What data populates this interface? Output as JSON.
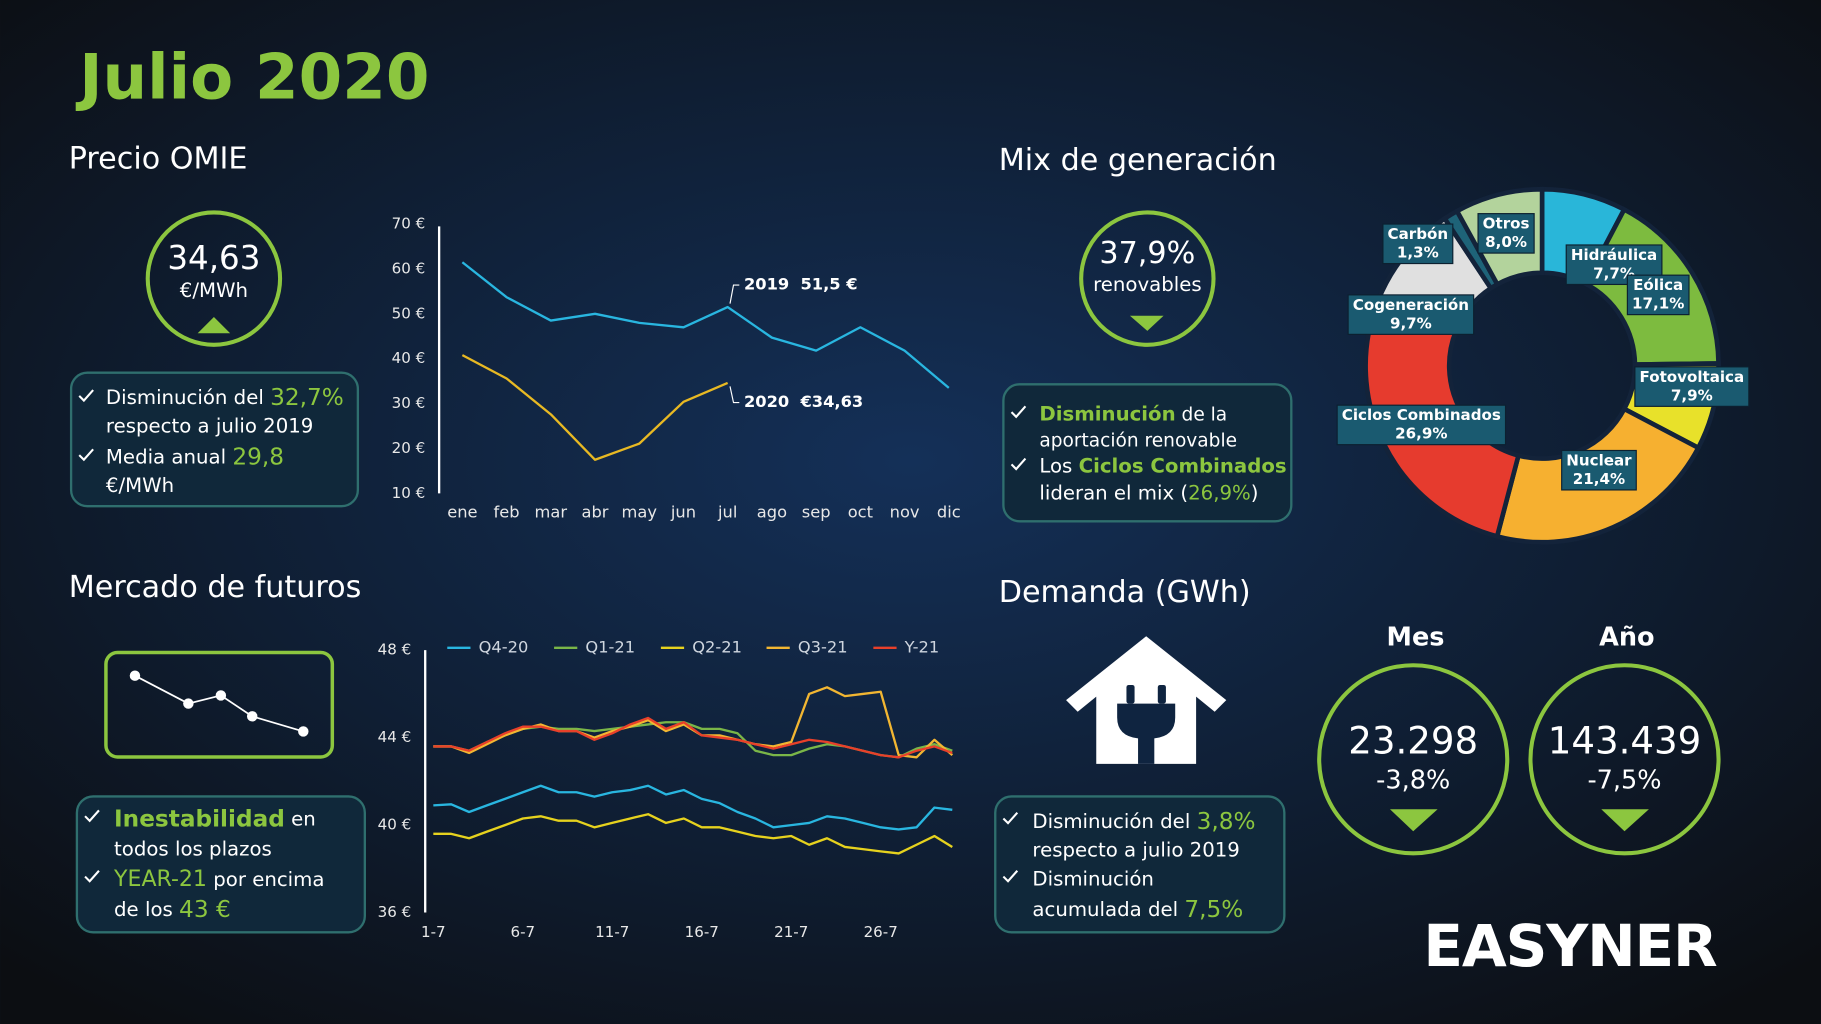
{
  "title": "Julio 2020",
  "omie": {
    "heading": "Precio OMIE",
    "price": "34,63",
    "unit": "€/MWh",
    "bullets": [
      [
        "Disminución del ",
        "32,7%"
      ],
      [
        "respecto a julio 2019"
      ],
      [
        "Media anual ",
        "29,8"
      ],
      [
        "€/MWh"
      ]
    ]
  },
  "mix": {
    "heading": "Mix de generación",
    "share": "37,9%",
    "unit": "renovables",
    "bullets": [
      [
        "Disminución",
        " de la"
      ],
      [
        "aportación renovable"
      ],
      [
        "Los ",
        "Ciclos Combinados"
      ],
      [
        "lideran el mix (",
        "26,9%",
        ")"
      ]
    ]
  },
  "futures": {
    "heading": "Mercado de futuros",
    "bullets": [
      [
        "Inestabilidad",
        " en"
      ],
      [
        "todos los plazos"
      ],
      [
        "YEAR-21",
        " por encima"
      ],
      [
        "de los ",
        "43 €"
      ]
    ]
  },
  "demand": {
    "heading": "Demanda (GWh)",
    "month": {
      "label": "Mes",
      "value": "23.298",
      "change": "-3,8%"
    },
    "year": {
      "label": "Año",
      "value": "143.439",
      "change": "-7,5%"
    },
    "bullets": [
      [
        "Disminución del ",
        "3,8%"
      ],
      [
        "respecto a julio 2019"
      ],
      [
        "Disminución"
      ],
      [
        "acumulada del ",
        "7,5%"
      ]
    ]
  },
  "logo": "EASYNER",
  "chart_data": [
    {
      "type": "line",
      "categories": [
        "ene",
        "feb",
        "mar",
        "abr",
        "may",
        "jun",
        "jul",
        "ago",
        "sep",
        "oct",
        "nov",
        "dic"
      ],
      "series": [
        {
          "name": "2019",
          "color": "#29b6e0",
          "values": [
            61.5,
            53.7,
            48.5,
            50,
            48,
            47,
            51.5,
            44.7,
            41.8,
            47,
            41.8,
            33.5
          ]
        },
        {
          "name": "2020",
          "color": "#e8b923",
          "values": [
            40.8,
            35.6,
            27.6,
            17.5,
            21.1,
            30.4,
            34.63,
            null,
            null,
            null,
            null,
            null
          ]
        }
      ],
      "annotations": [
        "2019  51,5 €",
        "2020  €34,63"
      ],
      "ylim": [
        10,
        70
      ],
      "yticks": [
        {
          "value": 10,
          "label": "10 €"
        },
        {
          "value": 20,
          "label": "20 €"
        },
        {
          "value": 30,
          "label": "30 €"
        },
        {
          "value": 40,
          "label": "40 €"
        },
        {
          "value": 50,
          "label": "50 €"
        },
        {
          "value": 60,
          "label": "60 €"
        },
        {
          "value": 70,
          "label": "70 €"
        }
      ]
    },
    {
      "type": "line",
      "x": [
        1,
        2,
        3,
        4,
        5,
        6,
        7,
        8,
        9,
        10,
        11,
        12,
        13,
        14,
        15,
        16,
        17,
        18,
        19,
        20,
        21,
        22,
        23,
        24,
        25,
        26,
        27,
        28,
        29,
        30
      ],
      "series": [
        {
          "name": "Q4-20",
          "color": "#29b6e0",
          "values": [
            40.9,
            40.95,
            40.6,
            40.9,
            41.2,
            41.5,
            41.8,
            41.5,
            41.5,
            41.3,
            41.5,
            41.6,
            41.8,
            41.4,
            41.6,
            41.2,
            41.0,
            40.6,
            40.3,
            39.9,
            40.0,
            40.1,
            40.4,
            40.3,
            40.1,
            39.9,
            39.8,
            39.9,
            40.8,
            40.7
          ]
        },
        {
          "name": "Q1-21",
          "color": "#7ab648",
          "values": [
            43.6,
            43.6,
            43.4,
            43.8,
            44.1,
            44.4,
            44.5,
            44.4,
            44.4,
            44.3,
            44.4,
            44.5,
            44.6,
            44.7,
            44.7,
            44.4,
            44.4,
            44.2,
            43.4,
            43.2,
            43.2,
            43.5,
            43.7,
            43.6,
            43.4,
            43.2,
            43.1,
            43.5,
            43.7,
            43.4
          ]
        },
        {
          "name": "Q2-21",
          "color": "#e6d21e",
          "values": [
            39.6,
            39.6,
            39.4,
            39.7,
            40.0,
            40.3,
            40.4,
            40.2,
            40.2,
            39.9,
            40.1,
            40.3,
            40.5,
            40.1,
            40.3,
            39.9,
            39.9,
            39.7,
            39.5,
            39.4,
            39.5,
            39.1,
            39.4,
            39.0,
            38.9,
            38.8,
            38.7,
            39.1,
            39.5,
            39.0
          ]
        },
        {
          "name": "Q3-21",
          "color": "#f2b632",
          "values": [
            43.6,
            43.6,
            43.3,
            43.7,
            44.1,
            44.4,
            44.6,
            44.3,
            44.3,
            44.0,
            44.3,
            44.5,
            44.8,
            44.3,
            44.6,
            44.1,
            44.1,
            43.9,
            43.7,
            43.6,
            43.8,
            46.0,
            46.3,
            45.9,
            46.0,
            46.1,
            43.2,
            43.1,
            43.9,
            43.2
          ]
        },
        {
          "name": "Y-21",
          "color": "#e8402a",
          "values": [
            43.6,
            43.6,
            43.4,
            43.8,
            44.2,
            44.5,
            44.5,
            44.3,
            44.3,
            43.9,
            44.2,
            44.6,
            44.9,
            44.4,
            44.7,
            44.1,
            44.0,
            43.9,
            43.7,
            43.5,
            43.7,
            43.9,
            43.8,
            43.6,
            43.4,
            43.2,
            43.1,
            43.4,
            43.6,
            43.3
          ]
        }
      ],
      "xlim": [
        1,
        30
      ],
      "xticks": [
        {
          "value": 1,
          "label": "1-7"
        },
        {
          "value": 6,
          "label": "6-7"
        },
        {
          "value": 11,
          "label": "11-7"
        },
        {
          "value": 16,
          "label": "16-7"
        },
        {
          "value": 21,
          "label": "21-7"
        },
        {
          "value": 26,
          "label": "26-7"
        }
      ],
      "ylim": [
        36,
        48
      ],
      "yticks": [
        {
          "value": 36,
          "label": "36 €"
        },
        {
          "value": 40,
          "label": "40 €"
        },
        {
          "value": 44,
          "label": "44 €"
        },
        {
          "value": 48,
          "label": "48 €"
        }
      ],
      "legend": "top"
    },
    {
      "type": "pie",
      "categories": [
        "Hidráulica",
        "Eólica",
        "Fotovoltaica",
        "Nuclear",
        "Ciclos Combinados",
        "Cogeneración",
        "Carbón",
        "Otros"
      ],
      "values": [
        7.7,
        17.1,
        7.9,
        21.4,
        26.9,
        9.7,
        1.3,
        8.0
      ],
      "value_labels": [
        "7,7%",
        "17,1%",
        "7,9%",
        "21,4%",
        "26,9%",
        "9,7%",
        "1,3%",
        "8,0%"
      ],
      "colors": [
        "#29b6d9",
        "#7dbb3f",
        "#e8e12a",
        "#f6b030",
        "#e63b2e",
        "#e0e0e0",
        "#1e6378",
        "#b3d39c"
      ],
      "donut": true
    }
  ]
}
